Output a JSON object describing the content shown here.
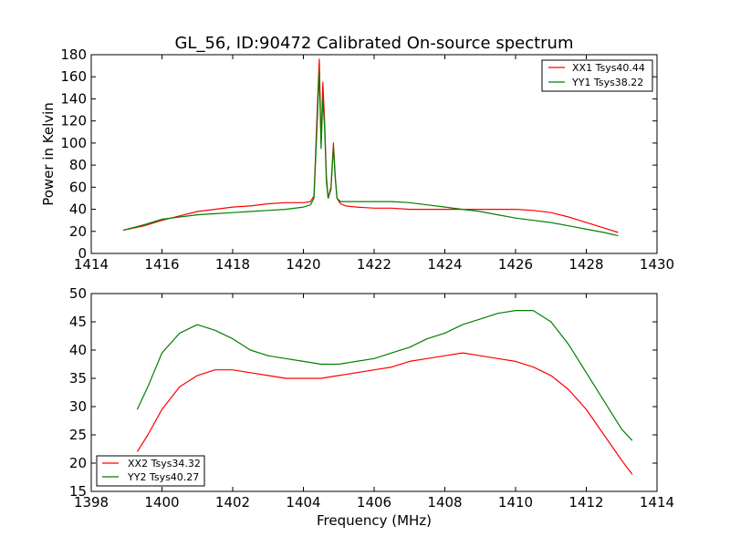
{
  "chart_data": [
    {
      "type": "line",
      "title": "GL_56, ID:90472 Calibrated On-source spectrum",
      "xlabel": "",
      "ylabel": "Power in Kelvin",
      "xlim": [
        1414,
        1430
      ],
      "ylim": [
        0,
        180
      ],
      "xticks": [
        1414,
        1416,
        1418,
        1420,
        1422,
        1424,
        1426,
        1428,
        1430
      ],
      "yticks": [
        0,
        20,
        40,
        60,
        80,
        100,
        120,
        140,
        160,
        180
      ],
      "legend": "top-right",
      "series": [
        {
          "name": "XX1 Tsys40.44",
          "color": "#ff0000",
          "x": [
            1414.9,
            1415.5,
            1416.0,
            1416.5,
            1417.0,
            1417.5,
            1418.0,
            1418.5,
            1419.0,
            1419.5,
            1420.0,
            1420.2,
            1420.3,
            1420.38,
            1420.45,
            1420.5,
            1420.55,
            1420.6,
            1420.65,
            1420.7,
            1420.78,
            1420.85,
            1420.9,
            1420.95,
            1421.05,
            1421.2,
            1421.5,
            1422.0,
            1422.5,
            1423.0,
            1423.5,
            1424.0,
            1424.5,
            1425.0,
            1425.5,
            1426.0,
            1426.5,
            1427.0,
            1427.5,
            1428.0,
            1428.5,
            1428.9
          ],
          "values": [
            21,
            25,
            30,
            34,
            38,
            40,
            42,
            43,
            45,
            46,
            46,
            47,
            52,
            120,
            176,
            100,
            155,
            120,
            70,
            50,
            60,
            100,
            70,
            50,
            45,
            43,
            42,
            41,
            41,
            40,
            40,
            40,
            40,
            40,
            40,
            40,
            39,
            37,
            33,
            28,
            23,
            19
          ]
        },
        {
          "name": "YY1 Tsys38.22",
          "color": "#008000",
          "x": [
            1414.9,
            1415.5,
            1416.0,
            1416.5,
            1417.0,
            1417.5,
            1418.0,
            1418.5,
            1419.0,
            1419.5,
            1420.0,
            1420.2,
            1420.3,
            1420.38,
            1420.45,
            1420.5,
            1420.55,
            1420.6,
            1420.65,
            1420.7,
            1420.78,
            1420.85,
            1420.9,
            1420.95,
            1421.05,
            1421.2,
            1421.5,
            1422.0,
            1422.5,
            1423.0,
            1423.5,
            1424.0,
            1424.5,
            1425.0,
            1425.5,
            1426.0,
            1426.5,
            1427.0,
            1427.5,
            1428.0,
            1428.5,
            1428.9
          ],
          "values": [
            21,
            26,
            31,
            33,
            35,
            36,
            37,
            38,
            39,
            40,
            42,
            44,
            50,
            110,
            165,
            95,
            140,
            115,
            65,
            50,
            58,
            97,
            68,
            50,
            47,
            47,
            47,
            47,
            47,
            46,
            44,
            42,
            40,
            38,
            35,
            32,
            30,
            28,
            25,
            22,
            19,
            16
          ]
        }
      ]
    },
    {
      "type": "line",
      "title": "",
      "xlabel": "Frequency (MHz)",
      "ylabel": "",
      "xlim": [
        1398,
        1414
      ],
      "ylim": [
        15,
        50
      ],
      "xticks": [
        1398,
        1400,
        1402,
        1404,
        1406,
        1408,
        1410,
        1412,
        1414
      ],
      "yticks": [
        15,
        20,
        25,
        30,
        35,
        40,
        45,
        50
      ],
      "legend": "bottom-left",
      "series": [
        {
          "name": "XX2 Tsys34.32",
          "color": "#ff0000",
          "x": [
            1399.3,
            1399.6,
            1400.0,
            1400.5,
            1401.0,
            1401.5,
            1402.0,
            1402.5,
            1403.0,
            1403.5,
            1404.0,
            1404.5,
            1405.0,
            1405.5,
            1406.0,
            1406.5,
            1407.0,
            1407.5,
            1408.0,
            1408.5,
            1409.0,
            1409.5,
            1410.0,
            1410.5,
            1411.0,
            1411.5,
            1412.0,
            1412.5,
            1413.0,
            1413.3
          ],
          "values": [
            22,
            25,
            29.5,
            33.5,
            35.5,
            36.5,
            36.5,
            36,
            35.5,
            35,
            35,
            35,
            35.5,
            36,
            36.5,
            37,
            38,
            38.5,
            39,
            39.5,
            39,
            38.5,
            38,
            37,
            35.5,
            33,
            29.5,
            25,
            20.5,
            18
          ]
        },
        {
          "name": "YY2 Tsys40.27",
          "color": "#008000",
          "x": [
            1399.3,
            1399.6,
            1400.0,
            1400.5,
            1401.0,
            1401.5,
            1402.0,
            1402.5,
            1403.0,
            1403.5,
            1404.0,
            1404.5,
            1405.0,
            1405.5,
            1406.0,
            1406.5,
            1407.0,
            1407.5,
            1408.0,
            1408.5,
            1409.0,
            1409.5,
            1410.0,
            1410.5,
            1411.0,
            1411.5,
            1412.0,
            1412.5,
            1413.0,
            1413.3
          ],
          "values": [
            29.5,
            33.5,
            39.5,
            43,
            44.5,
            43.5,
            42,
            40,
            39,
            38.5,
            38,
            37.5,
            37.5,
            38,
            38.5,
            39.5,
            40.5,
            42,
            43,
            44.5,
            45.5,
            46.5,
            47,
            47,
            45,
            41,
            36,
            31,
            26,
            24
          ]
        }
      ]
    }
  ]
}
